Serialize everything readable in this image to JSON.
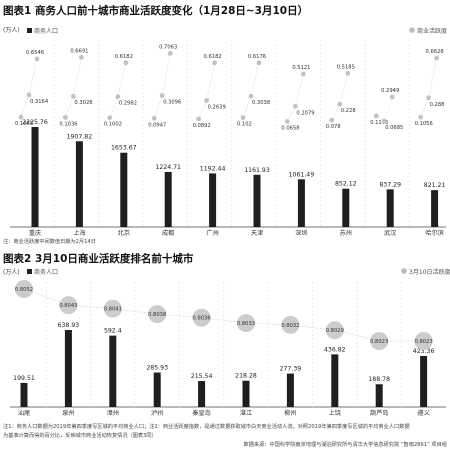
{
  "chart_data": [
    {
      "type": "bar",
      "title": "图表1 商务人口前十城市商业活跃度变化（1月28日~3月10日）",
      "ylabel": "(万人)",
      "legend_bar": "商务人口",
      "legend_dot": "商业活跃度",
      "note": "注：商业活跃度中间数值日期为2月14日",
      "categories": [
        "重庆",
        "上海",
        "北京",
        "成都",
        "广州",
        "天津",
        "深圳",
        "苏州",
        "武汉",
        "哈尔滨"
      ],
      "series": [
        {
          "name": "商务人口",
          "values": [
            2225.76,
            1907.82,
            1653.67,
            1224.71,
            1192.44,
            1161.93,
            1061.49,
            852.12,
            837.29,
            821.21
          ]
        },
        {
          "name": "商业活跃度",
          "values": [
            [
              0.1065,
              0.3164,
              0.6546
            ],
            [
              0.1036,
              0.3028,
              0.6691
            ],
            [
              0.1002,
              0.2982,
              0.6182
            ],
            [
              0.0947,
              0.3096,
              0.7063
            ],
            [
              0.0892,
              0.2639,
              0.6182
            ],
            [
              0.102,
              0.3038,
              0.6176
            ],
            [
              0.0658,
              0.2079,
              0.5121
            ],
            [
              0.078,
              0.228,
              0.5185
            ],
            [
              0.1176,
              0.0685,
              0.2949
            ],
            [
              0.1056,
              0.288,
              0.6628
            ]
          ]
        }
      ]
    },
    {
      "type": "bar",
      "title": "图表2 3月10日商业活跃度排名前十城市",
      "ylabel": "(万人)",
      "legend_bar": "商务人口",
      "legend_dot": "3月10日活跃度",
      "categories": [
        "汕尾",
        "泉州",
        "漳州",
        "泸州",
        "秦皇岛",
        "湛江",
        "柳州",
        "上饶",
        "葫芦岛",
        "遵义"
      ],
      "series": [
        {
          "name": "商务人口",
          "values": [
            199.51,
            638.93,
            592.4,
            285.93,
            215.54,
            218.28,
            277.39,
            436.82,
            188.78,
            423.36
          ]
        },
        {
          "name": "3月10日活跃度",
          "values": [
            0.8052,
            0.8043,
            0.8041,
            0.8038,
            0.8036,
            0.8033,
            0.8032,
            0.8029,
            0.8023,
            0.8023
          ]
        }
      ]
    }
  ],
  "notes": {
    "note2_line1": "注1：商务人口数据为2019年第四季度写区城的平均商业人口；注2：商业活跃度指数，是通过数据获取城市白天商业活动人流，对照2019年第四季度写区城的平均商业人口数据",
    "note2_line2": "为基准计算而得的百分比，反映城市商业活动恢复情况（图表3同）",
    "source": "数据来源：中国科学院南京地理与湖泊研究所与清华大学信息研究院 “智南2861” 项目组"
  }
}
